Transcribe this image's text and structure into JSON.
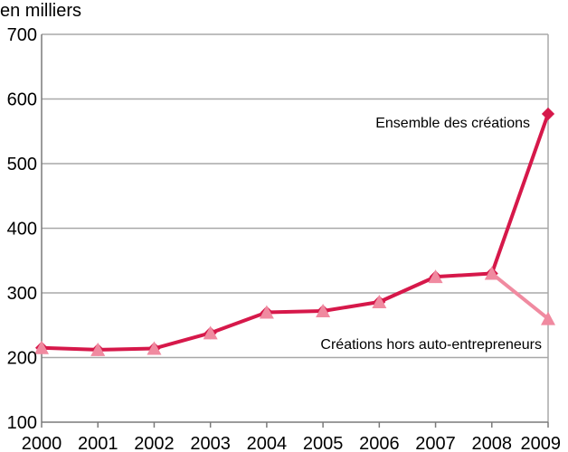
{
  "chart_data": {
    "type": "line",
    "unit_label": "en milliers",
    "x": [
      2000,
      2001,
      2002,
      2003,
      2004,
      2005,
      2006,
      2007,
      2008,
      2009
    ],
    "x_tick_labels": [
      "2000",
      "2001",
      "2002",
      "2003",
      "2004",
      "2005",
      "2006",
      "2007",
      "2008",
      "2009"
    ],
    "ylim": [
      100,
      700
    ],
    "y_ticks": [
      100,
      200,
      300,
      400,
      500,
      600,
      700
    ],
    "y_tick_labels": [
      "100",
      "200",
      "300",
      "400",
      "500",
      "600",
      "700"
    ],
    "grid": true,
    "series": [
      {
        "name": "Ensemble des créations",
        "color": "#d6184a",
        "marker": "diamond",
        "values": [
          215,
          212,
          214,
          238,
          270,
          272,
          286,
          325,
          330,
          577
        ]
      },
      {
        "name": "Créations hors auto-entrepreneurs",
        "color": "#f08aa0",
        "marker": "triangle",
        "values": [
          215,
          212,
          214,
          238,
          270,
          272,
          286,
          325,
          330,
          260
        ]
      }
    ]
  }
}
